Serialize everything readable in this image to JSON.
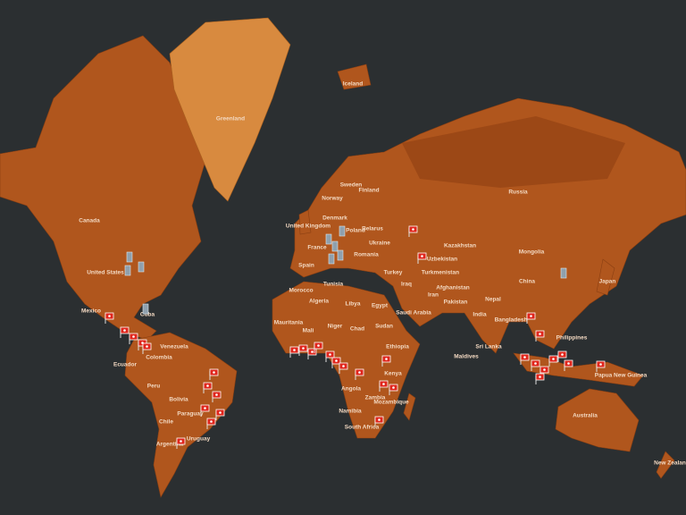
{
  "labels": [
    "Greenland",
    "Iceland",
    "Canada",
    "United States",
    "Cuba",
    "Mexico",
    "Venezuela",
    "Colombia",
    "Ecuador",
    "Peru",
    "Bolivia",
    "Paraguay",
    "Chile",
    "Argentina",
    "Uruguay",
    "Norway",
    "Sweden",
    "Finland",
    "Denmark",
    "United Kingdom",
    "France",
    "Spain",
    "Poland",
    "Belarus",
    "Ukraine",
    "Romania",
    "Turkey",
    "Morocco",
    "Algeria",
    "Tunisia",
    "Libya",
    "Egypt",
    "Mauritania",
    "Mali",
    "Niger",
    "Chad",
    "Sudan",
    "Ethiopia",
    "Kenya",
    "Angola",
    "Zambia",
    "Namibia",
    "Mozambique",
    "South Africa",
    "Saudi Arabia",
    "Iraq",
    "Iran",
    "Turkmenistan",
    "Uzbekistan",
    "Kazakhstan",
    "Afghanistan",
    "Pakistan",
    "India",
    "Nepal",
    "Bangladesh",
    "Sri Lanka",
    "Maldives",
    "Russia",
    "Mongolia",
    "China",
    "Japan",
    "Philippines",
    "Papua New Guinea",
    "Australia",
    "New Zealand"
  ]
}
